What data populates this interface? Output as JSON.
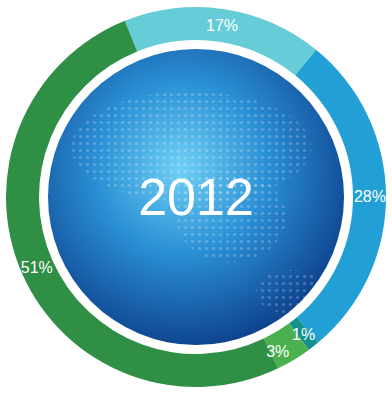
{
  "chart_data": {
    "type": "pie",
    "title": "2012",
    "values": [
      17,
      28,
      1,
      3,
      51
    ],
    "value_labels": [
      "17%",
      "28%",
      "1%",
      "3%",
      "51%"
    ],
    "colors": [
      "#66cdd8",
      "#22a0d6",
      "#12928f",
      "#4bb04f",
      "#2f8f44"
    ],
    "data_labels": true
  }
}
